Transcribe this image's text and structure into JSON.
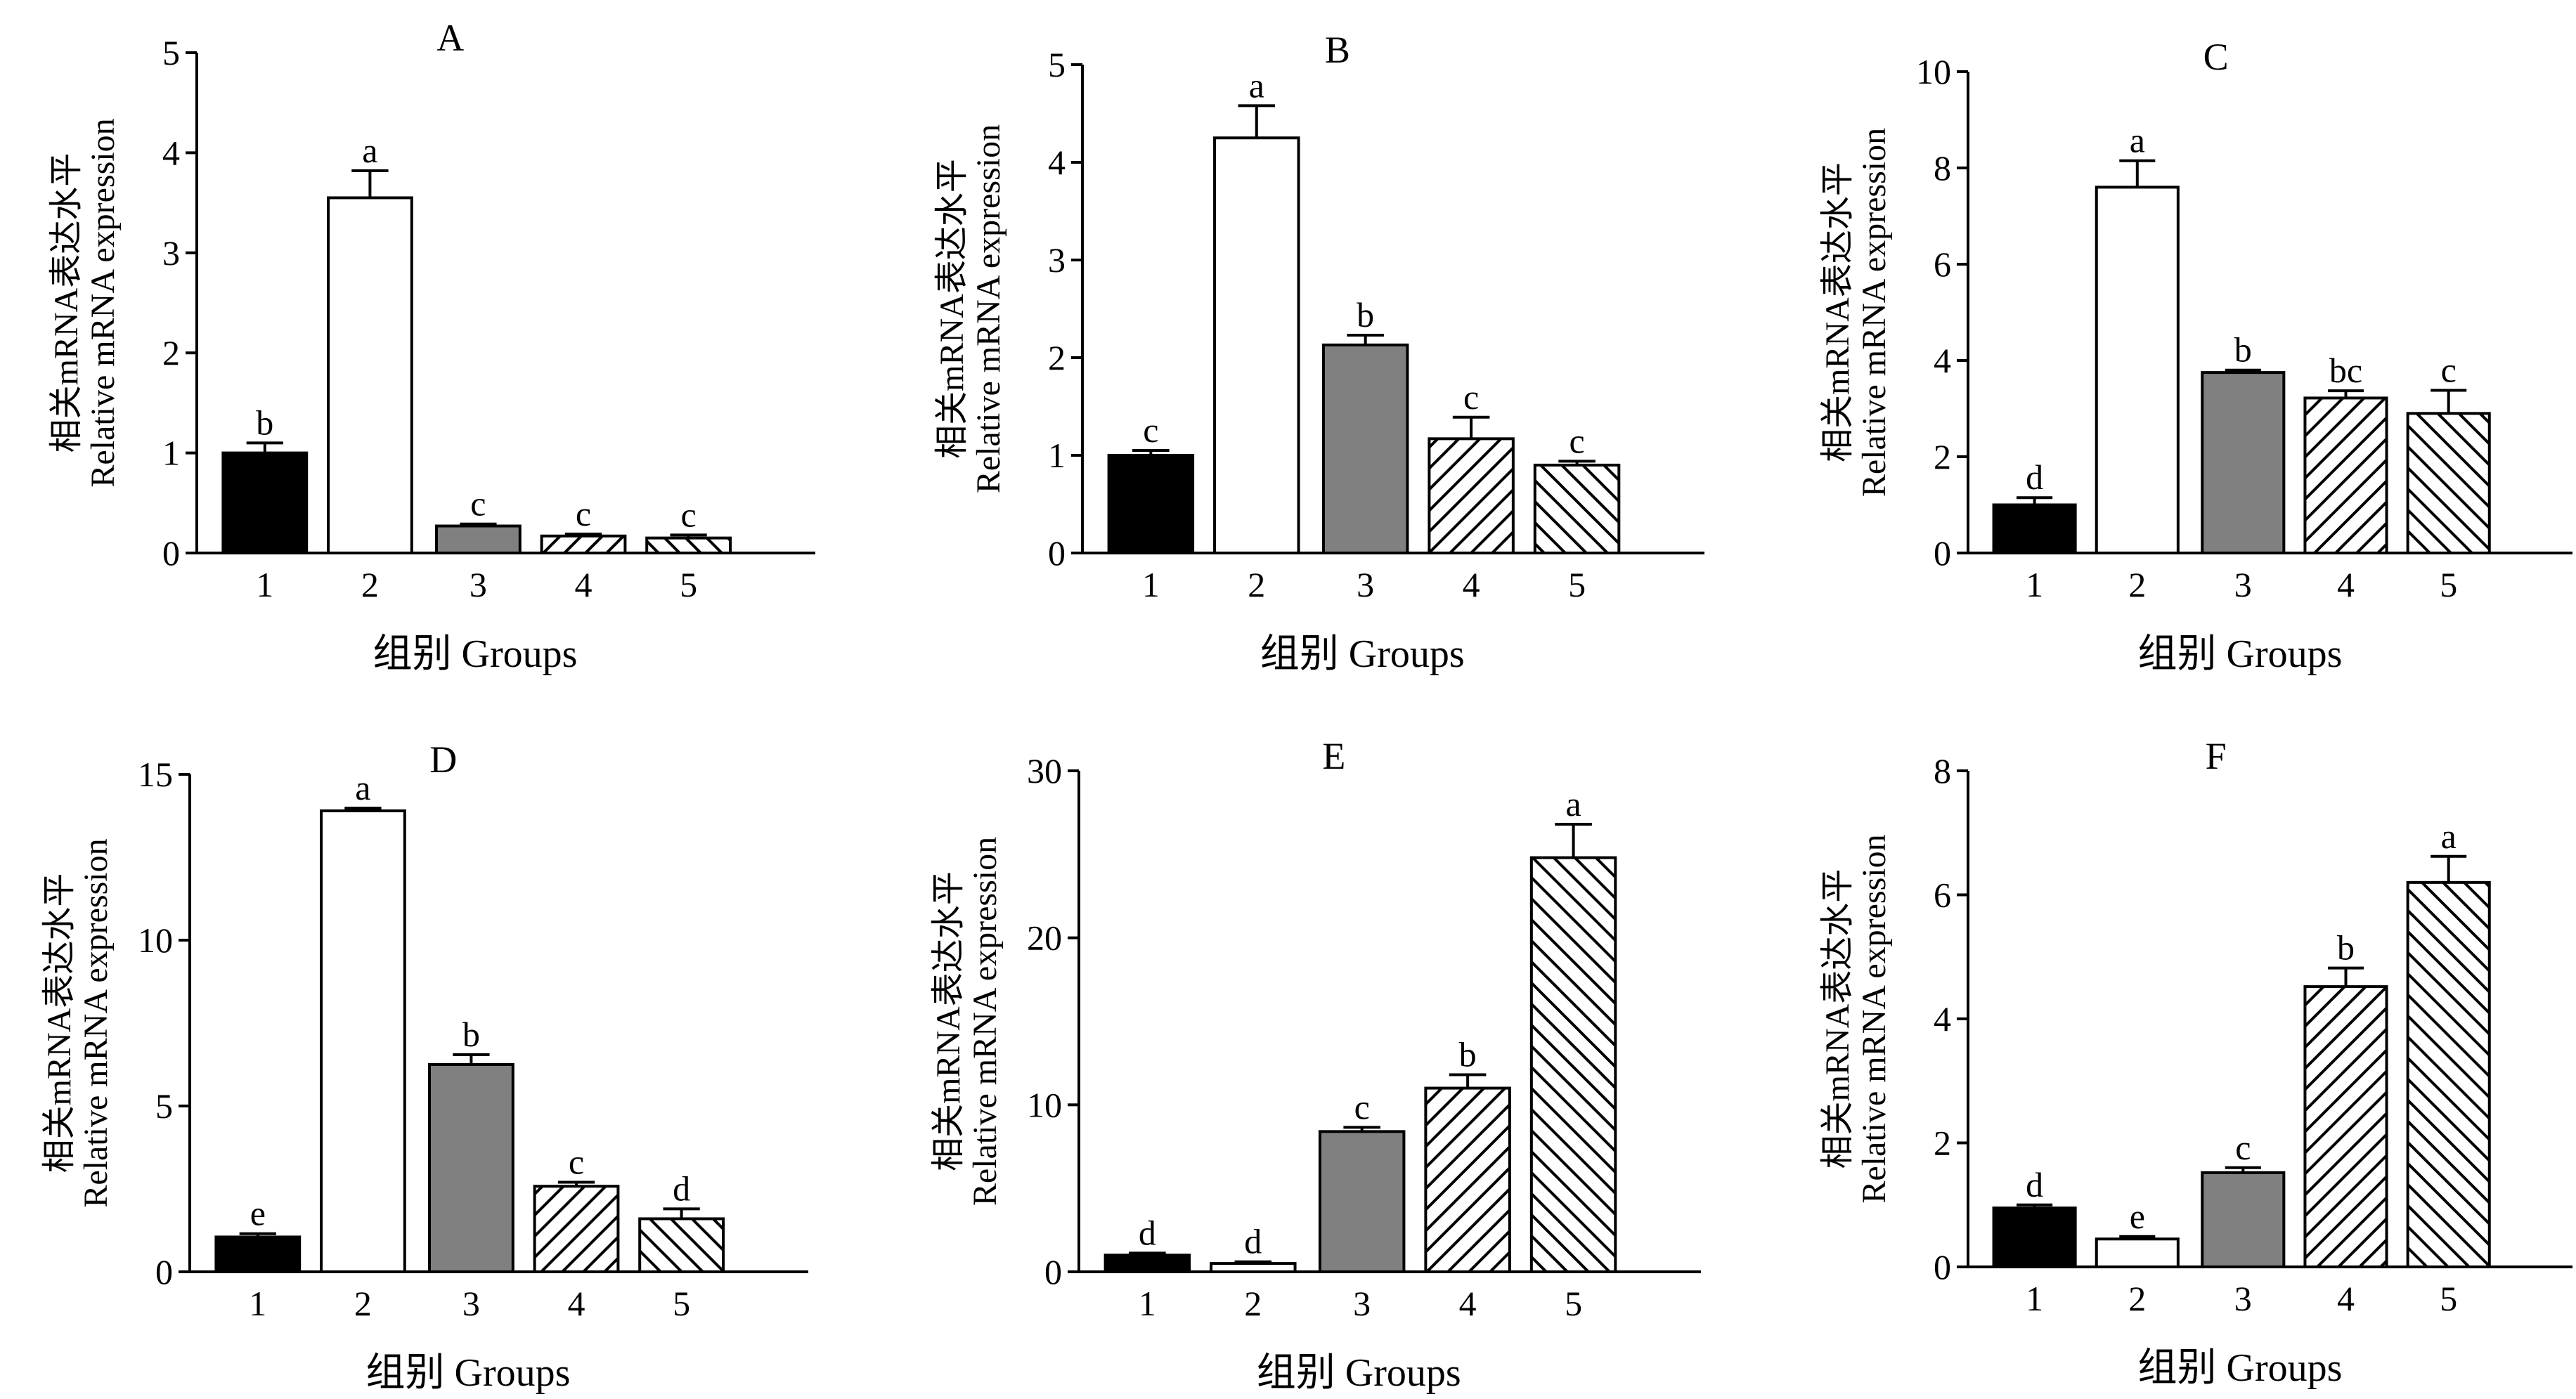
{
  "chart_data": [
    {
      "type": "bar",
      "title": "A",
      "categories": [
        "1",
        "2",
        "3",
        "4",
        "5"
      ],
      "values": [
        1.0,
        3.55,
        0.27,
        0.17,
        0.15
      ],
      "errors": [
        0.1,
        0.27,
        0.02,
        0.02,
        0.03
      ],
      "letters": [
        "b",
        "a",
        "c",
        "c",
        "c"
      ],
      "ylim": [
        0,
        5
      ],
      "yticks": [
        "0",
        "1",
        "2",
        "3",
        "4",
        "5"
      ],
      "ylabel_cn": "相关mRNA表达水平",
      "ylabel_en": "Relative mRNA expression",
      "xlabel": "组别 Groups"
    },
    {
      "type": "bar",
      "title": "B",
      "categories": [
        "1",
        "2",
        "3",
        "4",
        "5"
      ],
      "values": [
        1.0,
        4.25,
        2.13,
        1.17,
        0.9
      ],
      "errors": [
        0.05,
        0.33,
        0.1,
        0.22,
        0.04
      ],
      "letters": [
        "c",
        "a",
        "b",
        "c",
        "c"
      ],
      "ylim": [
        0,
        5
      ],
      "yticks": [
        "0",
        "1",
        "2",
        "3",
        "4",
        "5"
      ],
      "ylabel_cn": "相关mRNA表达水平",
      "ylabel_en": "Relative mRNA expression",
      "xlabel": "组别 Groups"
    },
    {
      "type": "bar",
      "title": "C",
      "categories": [
        "1",
        "2",
        "3",
        "4",
        "5"
      ],
      "values": [
        1.0,
        7.6,
        3.75,
        3.22,
        2.9
      ],
      "errors": [
        0.15,
        0.55,
        0.05,
        0.15,
        0.48
      ],
      "letters": [
        "d",
        "a",
        "b",
        "bc",
        "c"
      ],
      "ylim": [
        0,
        10
      ],
      "yticks": [
        "0",
        "2",
        "4",
        "6",
        "8",
        "10"
      ],
      "ylabel_cn": "相关mRNA表达水平",
      "ylabel_en": "Relative mRNA expression",
      "xlabel": "组别 Groups"
    },
    {
      "type": "bar",
      "title": "D",
      "categories": [
        "1",
        "2",
        "3",
        "4",
        "5"
      ],
      "values": [
        1.05,
        13.9,
        6.25,
        2.58,
        1.6
      ],
      "errors": [
        0.1,
        0.08,
        0.3,
        0.12,
        0.3
      ],
      "letters": [
        "e",
        "a",
        "b",
        "c",
        "d"
      ],
      "ylim": [
        0,
        15
      ],
      "yticks": [
        "0",
        "5",
        "10",
        "15"
      ],
      "ylabel_cn": "相关mRNA表达水平",
      "ylabel_en": "Relative mRNA expression",
      "xlabel": "组别 Groups"
    },
    {
      "type": "bar",
      "title": "E",
      "categories": [
        "1",
        "2",
        "3",
        "4",
        "5"
      ],
      "values": [
        1.0,
        0.5,
        8.4,
        11.0,
        24.8
      ],
      "errors": [
        0.12,
        0.1,
        0.25,
        0.8,
        2.0
      ],
      "letters": [
        "d",
        "d",
        "c",
        "b",
        "a"
      ],
      "ylim": [
        0,
        30
      ],
      "yticks": [
        "0",
        "10",
        "20",
        "30"
      ],
      "ylabel_cn": "相关mRNA表达水平",
      "ylabel_en": "Relative mRNA expression",
      "xlabel": "组别 Groups"
    },
    {
      "type": "bar",
      "title": "F",
      "categories": [
        "1",
        "2",
        "3",
        "4",
        "5"
      ],
      "values": [
        0.95,
        0.45,
        1.52,
        4.52,
        6.2
      ],
      "errors": [
        0.05,
        0.04,
        0.08,
        0.3,
        0.42
      ],
      "letters": [
        "d",
        "e",
        "c",
        "b",
        "a"
      ],
      "ylim": [
        0,
        8
      ],
      "yticks": [
        "0",
        "2",
        "4",
        "6",
        "8"
      ],
      "ylabel_cn": "相关mRNA表达水平",
      "ylabel_en": "Relative mRNA expression",
      "xlabel": "组别 Groups"
    }
  ],
  "bar_styles": [
    "solid-black",
    "white",
    "solid-gray",
    "hatch-forward",
    "hatch-backward"
  ],
  "colors": {
    "black": "#000000",
    "gray": "#808080",
    "white": "#ffffff"
  }
}
